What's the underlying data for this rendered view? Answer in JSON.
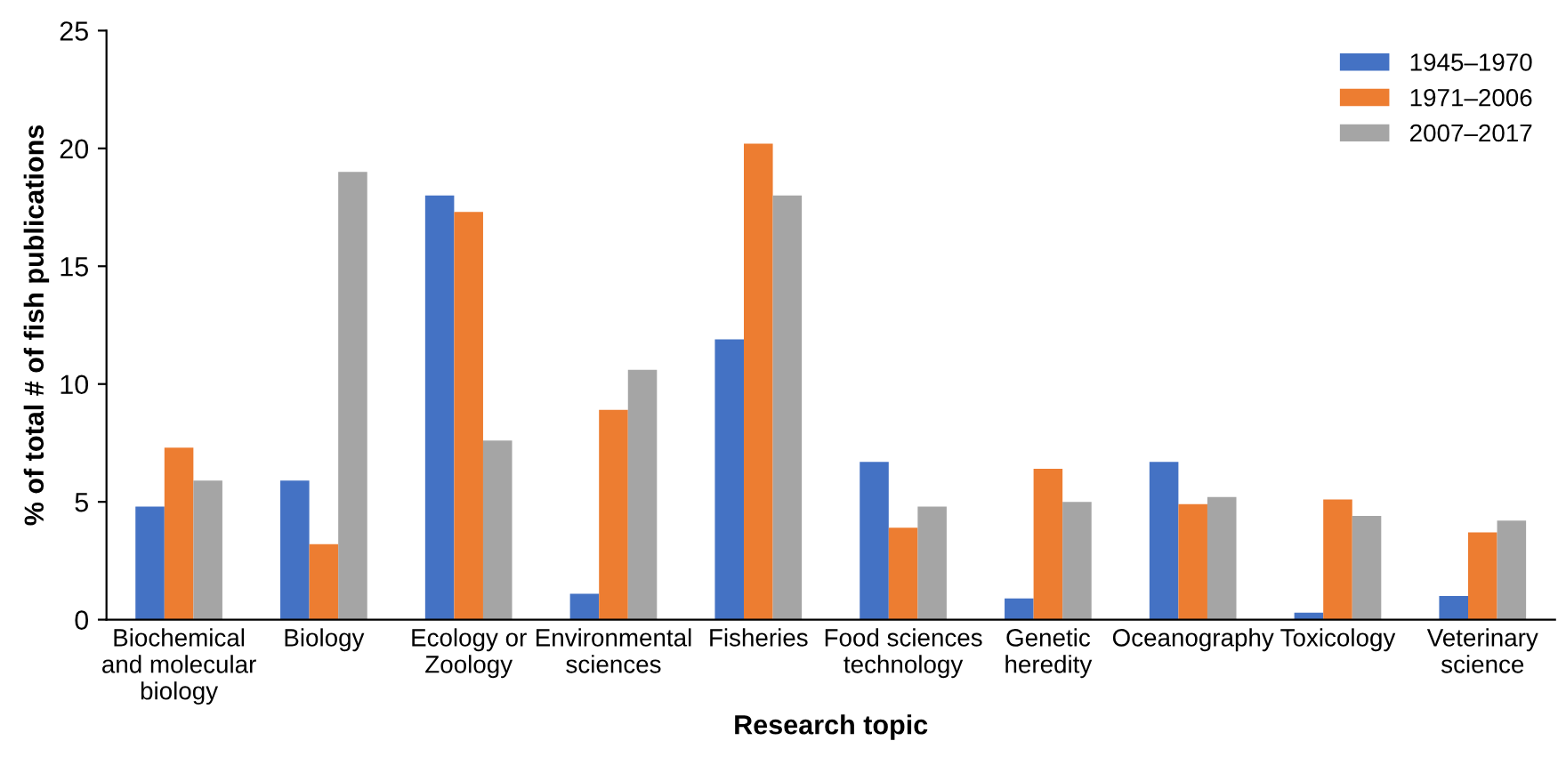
{
  "chart_data": {
    "type": "bar",
    "xlabel": "Research topic",
    "ylabel": "% of total # of fish publications",
    "categories": [
      "Biochemical\nand molecular\nbiology",
      "Biology",
      "Ecology or\nZoology",
      "Environmental\nsciences",
      "Fisheries",
      "Food sciences\ntechnology",
      "Genetic\nheredity",
      "Oceanography",
      "Toxicology",
      "Veterinary\nscience"
    ],
    "series": [
      {
        "name": "1945–1970",
        "color": "#4472c4",
        "values": [
          4.8,
          5.9,
          18.0,
          1.1,
          11.9,
          6.7,
          0.9,
          6.7,
          0.3,
          1.0
        ]
      },
      {
        "name": "1971–2006",
        "color": "#ed7d31",
        "values": [
          7.3,
          3.2,
          17.3,
          8.9,
          20.2,
          3.9,
          6.4,
          4.9,
          5.1,
          3.7
        ]
      },
      {
        "name": "2007–2017",
        "color": "#a5a5a5",
        "values": [
          5.9,
          19.0,
          7.6,
          10.6,
          18.0,
          4.8,
          5.0,
          5.2,
          4.4,
          4.2
        ]
      }
    ],
    "ylim": [
      0,
      25
    ],
    "yticks": [
      0,
      5,
      10,
      15,
      20,
      25
    ],
    "grid": false,
    "legend": "top right"
  }
}
